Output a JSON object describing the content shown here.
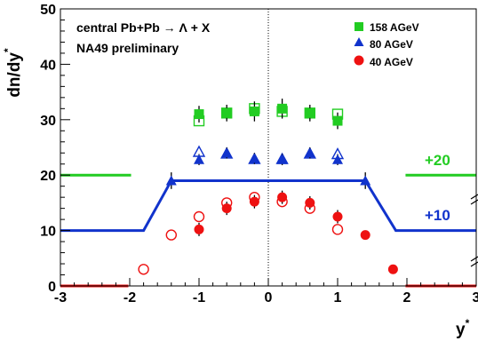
{
  "chart_data": {
    "type": "scatter",
    "xlabel": "y",
    "xlabel_superscript": "*",
    "ylabel": "dn/dy",
    "ylabel_superscript": "*",
    "xlim": [
      -3,
      3
    ],
    "ylim": [
      0,
      50
    ],
    "x_ticks": [
      -3,
      -2,
      -1,
      0,
      1,
      2,
      3
    ],
    "y_ticks": [
      0,
      10,
      20,
      30,
      40,
      50
    ],
    "x_tick_labels": [
      "-3",
      "-2",
      "-1",
      "0",
      "1",
      "2",
      "3"
    ],
    "y_tick_labels": [
      "0",
      "10",
      "20",
      "30",
      "40",
      "50"
    ],
    "grid": false,
    "zero_line_x": 0,
    "annotations": {
      "title_line1": "central Pb+Pb → Λ + X",
      "title_line2": "NA49 preliminary",
      "offset_20": "+20",
      "offset_10": "+10"
    },
    "legend": {
      "placement": "top-right",
      "entries": [
        {
          "label": "158 AGeV",
          "marker": "square",
          "color": "#22cc22"
        },
        {
          "label": "80 AGeV",
          "marker": "triangle",
          "color": "#1133cc"
        },
        {
          "label": "40 AGeV",
          "marker": "circle",
          "color": "#ee1111"
        }
      ]
    },
    "series": [
      {
        "name": "158 AGeV",
        "color": "#22cc22",
        "marker": "square",
        "measured": {
          "x": [
            -1.0,
            -0.6,
            -0.2,
            0.2,
            0.6,
            1.0
          ],
          "y": [
            31.0,
            31.2,
            31.5,
            32.0,
            31.2,
            29.8
          ],
          "yerr": [
            1.5,
            1.5,
            1.8,
            1.8,
            1.5,
            1.5
          ]
        },
        "reflected": {
          "x": [
            -1.0,
            -0.6,
            -0.2,
            0.2,
            0.6,
            1.0
          ],
          "y": [
            29.8,
            31.2,
            32.0,
            31.5,
            31.2,
            31.0
          ]
        },
        "baseline": 20,
        "baseline_segments": [
          [
            -3.0,
            -1.98
          ],
          [
            1.98,
            3.0
          ]
        ]
      },
      {
        "name": "80 AGeV",
        "color": "#1133cc",
        "marker": "triangle",
        "measured": {
          "x": [
            -1.4,
            -1.0,
            -0.6,
            -0.2,
            0.2,
            0.6,
            1.0,
            1.4
          ],
          "y": [
            19.0,
            22.8,
            24.0,
            23.0,
            22.8,
            24.0,
            22.8,
            19.0
          ],
          "yerr": [
            1.5,
            1.0,
            1.0,
            1.0,
            1.0,
            1.0,
            1.0,
            1.5
          ]
        },
        "reflected": {
          "x": [
            -1.0,
            -0.6,
            -0.2,
            0.2,
            0.6,
            1.0
          ],
          "y": [
            24.2,
            23.9,
            22.9,
            22.9,
            23.9,
            23.8
          ]
        },
        "baseline": 10,
        "fit_curve": {
          "x": [
            -3.0,
            -1.8,
            -1.4,
            1.4,
            1.84,
            3.0
          ],
          "y": [
            10,
            10,
            19,
            19,
            10,
            10
          ]
        }
      },
      {
        "name": "40 AGeV",
        "color": "#ee1111",
        "marker": "circle",
        "measured": {
          "x": [
            -1.0,
            -0.6,
            -0.2,
            0.2,
            0.6,
            1.0,
            1.4,
            1.8
          ],
          "y": [
            10.2,
            14.0,
            15.2,
            16.0,
            15.0,
            12.5,
            9.2,
            3.0
          ],
          "yerr": [
            1.2,
            1.2,
            1.2,
            1.2,
            1.2,
            1.2,
            0.8,
            0.6
          ]
        },
        "reflected": {
          "x": [
            -1.8,
            -1.4,
            -1.0,
            -0.6,
            -0.2,
            0.2,
            0.6,
            1.0
          ],
          "y": [
            3.0,
            9.2,
            12.5,
            15.0,
            16.0,
            15.2,
            14.0,
            10.2
          ]
        },
        "baseline": 0,
        "baseline_segments": [
          [
            -3.0,
            -2.02
          ],
          [
            1.98,
            3.0
          ]
        ]
      }
    ]
  }
}
